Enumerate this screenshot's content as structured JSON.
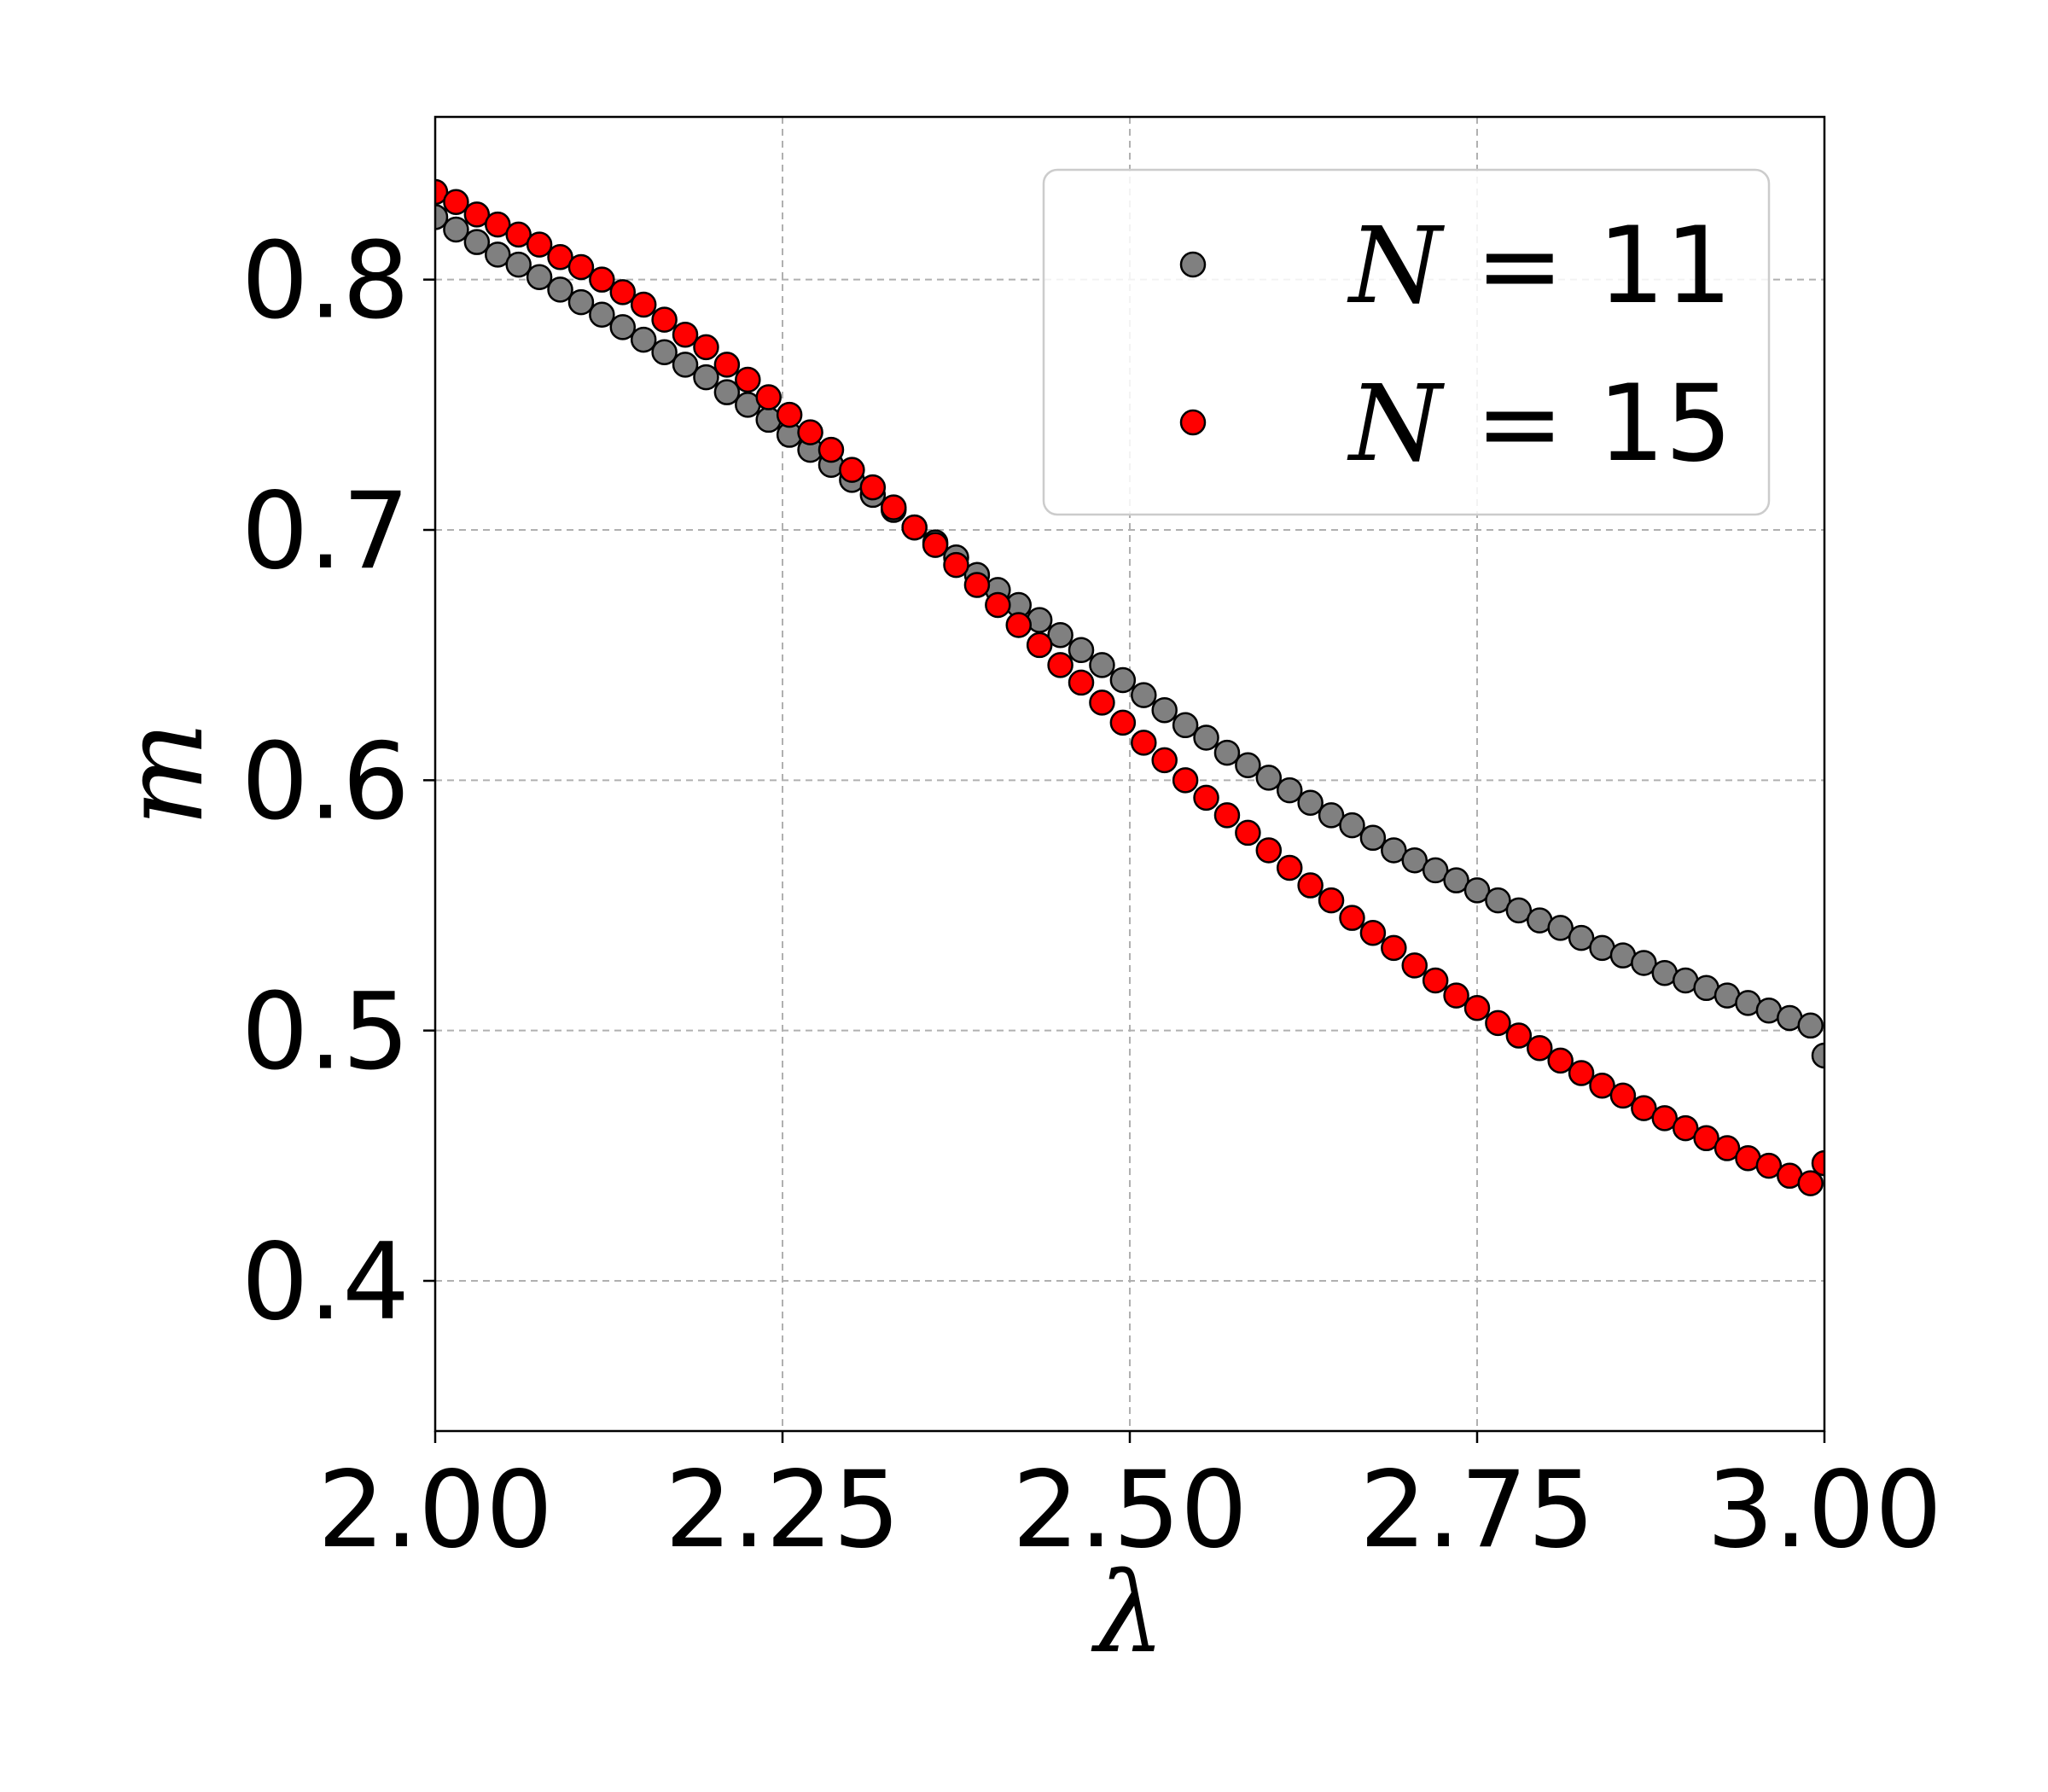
{
  "chart_data": {
    "type": "scatter",
    "xlabel": "λ",
    "ylabel": "m",
    "xlim": [
      2.0,
      3.0
    ],
    "ylim": [
      0.34,
      0.865
    ],
    "xticks": [
      2.0,
      2.25,
      2.5,
      2.75,
      3.0
    ],
    "xtick_labels": [
      "2.00",
      "2.25",
      "2.50",
      "2.75",
      "3.00"
    ],
    "yticks": [
      0.4,
      0.5,
      0.6,
      0.7,
      0.8
    ],
    "ytick_labels": [
      "0.4",
      "0.5",
      "0.6",
      "0.7",
      "0.8"
    ],
    "grid": true,
    "legend_position": "upper right",
    "colors": {
      "grid": "#b0b0b0",
      "axes": "#000000",
      "marker_edge": "#000000",
      "legend_edge": "#cccccc"
    },
    "x": [
      2.0,
      2.015,
      2.03,
      2.045,
      2.06,
      2.075,
      2.09,
      2.105,
      2.12,
      2.135,
      2.15,
      2.165,
      2.18,
      2.195,
      2.21,
      2.225,
      2.24,
      2.255,
      2.27,
      2.285,
      2.3,
      2.315,
      2.33,
      2.345,
      2.36,
      2.375,
      2.39,
      2.405,
      2.42,
      2.435,
      2.45,
      2.465,
      2.48,
      2.495,
      2.51,
      2.525,
      2.54,
      2.555,
      2.57,
      2.585,
      2.6,
      2.615,
      2.63,
      2.645,
      2.66,
      2.675,
      2.69,
      2.705,
      2.72,
      2.735,
      2.75,
      2.765,
      2.78,
      2.795,
      2.81,
      2.825,
      2.84,
      2.855,
      2.87,
      2.885,
      2.9,
      2.915,
      2.93,
      2.945,
      2.96,
      2.975,
      2.99,
      3.0
    ],
    "series": [
      {
        "name": "N = 11",
        "color": "#808080",
        "values": [
          0.825,
          0.82,
          0.815,
          0.81,
          0.806,
          0.801,
          0.796,
          0.791,
          0.786,
          0.781,
          0.776,
          0.771,
          0.766,
          0.761,
          0.755,
          0.75,
          0.744,
          0.738,
          0.732,
          0.726,
          0.72,
          0.714,
          0.708,
          0.701,
          0.695,
          0.689,
          0.682,
          0.676,
          0.67,
          0.664,
          0.658,
          0.652,
          0.646,
          0.64,
          0.634,
          0.628,
          0.622,
          0.617,
          0.611,
          0.606,
          0.601,
          0.596,
          0.591,
          0.586,
          0.582,
          0.577,
          0.572,
          0.568,
          0.564,
          0.56,
          0.556,
          0.552,
          0.548,
          0.544,
          0.541,
          0.537,
          0.533,
          0.53,
          0.527,
          0.523,
          0.52,
          0.517,
          0.514,
          0.511,
          0.508,
          0.505,
          0.502,
          0.49
        ]
      },
      {
        "name": "N = 15",
        "color": "#ff0000",
        "values": [
          0.835,
          0.831,
          0.826,
          0.822,
          0.818,
          0.814,
          0.809,
          0.805,
          0.8,
          0.795,
          0.79,
          0.784,
          0.778,
          0.773,
          0.766,
          0.76,
          0.753,
          0.746,
          0.739,
          0.732,
          0.724,
          0.717,
          0.709,
          0.701,
          0.694,
          0.686,
          0.678,
          0.67,
          0.662,
          0.654,
          0.646,
          0.639,
          0.631,
          0.623,
          0.615,
          0.608,
          0.6,
          0.593,
          0.586,
          0.579,
          0.572,
          0.565,
          0.558,
          0.552,
          0.545,
          0.539,
          0.533,
          0.526,
          0.52,
          0.514,
          0.509,
          0.503,
          0.498,
          0.493,
          0.488,
          0.483,
          0.478,
          0.474,
          0.469,
          0.465,
          0.461,
          0.457,
          0.453,
          0.449,
          0.446,
          0.442,
          0.439,
          0.447
        ]
      }
    ]
  }
}
